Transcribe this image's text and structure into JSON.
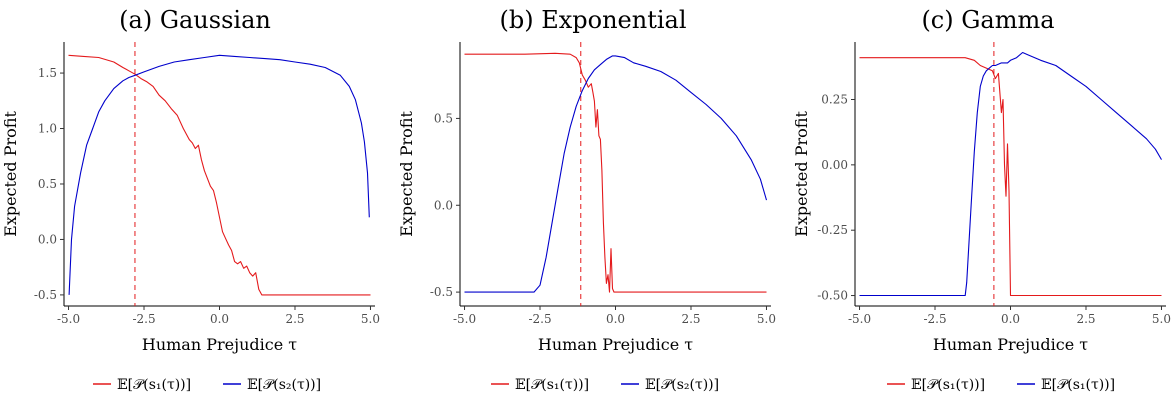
{
  "chart_data": [
    {
      "type": "line",
      "title": "(a) Gaussian",
      "xlabel": "Human Prejudice τ",
      "ylabel": "Expected Profit",
      "xlim": [
        -5.15,
        5.15
      ],
      "ylim": [
        -0.6,
        1.78
      ],
      "xticks": [
        -5.0,
        -2.5,
        0.0,
        2.5,
        5.0
      ],
      "xtick_labels": [
        "-5.0",
        "-2.5",
        "0.0",
        "2.5",
        "5.0"
      ],
      "yticks": [
        -0.5,
        0.0,
        0.5,
        1.0,
        1.5
      ],
      "ytick_labels": [
        "-0.5",
        "0.0",
        "0.5",
        "1.0",
        "1.5"
      ],
      "vline": {
        "x": -2.8,
        "color": "#e41a1c"
      },
      "legend_placement": "bottom",
      "grid": false,
      "series": [
        {
          "name": "𝔼[𝒫(s₁(τ))]",
          "color": "#e41a1c",
          "x": [
            -5.0,
            -4.5,
            -4.0,
            -3.5,
            -3.2,
            -3.0,
            -2.8,
            -2.6,
            -2.4,
            -2.2,
            -2.0,
            -1.8,
            -1.6,
            -1.4,
            -1.2,
            -1.0,
            -0.9,
            -0.8,
            -0.7,
            -0.6,
            -0.5,
            -0.4,
            -0.3,
            -0.2,
            -0.1,
            0.0,
            0.1,
            0.2,
            0.3,
            0.4,
            0.5,
            0.6,
            0.7,
            0.8,
            0.9,
            1.0,
            1.1,
            1.2,
            1.3,
            1.4,
            2.0,
            3.0,
            4.0,
            5.0
          ],
          "y": [
            1.66,
            1.65,
            1.64,
            1.6,
            1.55,
            1.52,
            1.49,
            1.45,
            1.42,
            1.38,
            1.3,
            1.25,
            1.18,
            1.12,
            1.0,
            0.9,
            0.87,
            0.82,
            0.85,
            0.72,
            0.62,
            0.55,
            0.48,
            0.44,
            0.33,
            0.2,
            0.07,
            0.01,
            -0.05,
            -0.1,
            -0.2,
            -0.22,
            -0.2,
            -0.26,
            -0.24,
            -0.3,
            -0.33,
            -0.3,
            -0.45,
            -0.5,
            -0.5,
            -0.5,
            -0.5,
            -0.5
          ]
        },
        {
          "name": "𝔼[𝒫(s₂(τ))]",
          "color": "#0000cc",
          "x": [
            -4.98,
            -4.9,
            -4.8,
            -4.6,
            -4.4,
            -4.2,
            -4.0,
            -3.8,
            -3.5,
            -3.2,
            -3.0,
            -2.8,
            -2.5,
            -2.0,
            -1.5,
            -1.0,
            -0.5,
            0.0,
            0.5,
            1.0,
            1.5,
            2.0,
            2.5,
            3.0,
            3.5,
            4.0,
            4.3,
            4.5,
            4.7,
            4.8,
            4.9,
            4.96
          ],
          "y": [
            -0.5,
            0.0,
            0.3,
            0.6,
            0.85,
            1.0,
            1.15,
            1.25,
            1.36,
            1.43,
            1.46,
            1.48,
            1.51,
            1.56,
            1.6,
            1.62,
            1.64,
            1.66,
            1.65,
            1.64,
            1.63,
            1.62,
            1.6,
            1.58,
            1.55,
            1.48,
            1.38,
            1.26,
            1.05,
            0.88,
            0.6,
            0.2
          ]
        }
      ]
    },
    {
      "type": "line",
      "title": "(b) Exponential",
      "xlabel": "Human Prejudice τ",
      "ylabel": "Expected Profit",
      "xlim": [
        -5.15,
        5.15
      ],
      "ylim": [
        -0.58,
        0.94
      ],
      "xticks": [
        -5.0,
        -2.5,
        0.0,
        2.5,
        5.0
      ],
      "xtick_labels": [
        "-5.0",
        "-2.5",
        "0.0",
        "2.5",
        "5.0"
      ],
      "yticks": [
        -0.5,
        0.0,
        0.5
      ],
      "ytick_labels": [
        "-0.5",
        "0.0",
        "0.5"
      ],
      "vline": {
        "x": -1.15,
        "color": "#e41a1c"
      },
      "legend_placement": "bottom",
      "grid": false,
      "series": [
        {
          "name": "𝔼[𝒫(s₁(τ))]",
          "color": "#e41a1c",
          "x": [
            -5.0,
            -3.0,
            -2.0,
            -1.5,
            -1.3,
            -1.2,
            -1.1,
            -1.0,
            -0.9,
            -0.8,
            -0.75,
            -0.7,
            -0.65,
            -0.6,
            -0.55,
            -0.5,
            -0.45,
            -0.4,
            -0.35,
            -0.3,
            -0.25,
            -0.2,
            -0.15,
            -0.1,
            -0.05,
            0.0,
            5.0
          ],
          "y": [
            0.87,
            0.87,
            0.875,
            0.87,
            0.85,
            0.82,
            0.75,
            0.72,
            0.68,
            0.7,
            0.65,
            0.6,
            0.45,
            0.55,
            0.4,
            0.38,
            0.2,
            -0.1,
            -0.3,
            -0.45,
            -0.4,
            -0.5,
            -0.25,
            -0.48,
            -0.5,
            -0.5,
            -0.5
          ]
        },
        {
          "name": "𝔼[𝒫(s₂(τ))]",
          "color": "#0000cc",
          "x": [
            -5.0,
            -3.0,
            -2.7,
            -2.5,
            -2.3,
            -2.1,
            -1.9,
            -1.7,
            -1.5,
            -1.3,
            -1.1,
            -0.9,
            -0.7,
            -0.5,
            -0.3,
            -0.1,
            0.0,
            0.3,
            0.6,
            1.0,
            1.5,
            2.0,
            2.5,
            3.0,
            3.5,
            4.0,
            4.5,
            4.8,
            5.0
          ],
          "y": [
            -0.5,
            -0.5,
            -0.5,
            -0.46,
            -0.3,
            -0.1,
            0.1,
            0.3,
            0.45,
            0.57,
            0.66,
            0.73,
            0.78,
            0.81,
            0.84,
            0.86,
            0.86,
            0.85,
            0.82,
            0.8,
            0.77,
            0.72,
            0.65,
            0.58,
            0.5,
            0.4,
            0.26,
            0.15,
            0.03
          ]
        }
      ]
    },
    {
      "type": "line",
      "title": "(c) Gamma",
      "xlabel": "Human Prejudice τ",
      "ylabel": "Expected Profit",
      "xlim": [
        -5.15,
        5.15
      ],
      "ylim": [
        -0.54,
        0.47
      ],
      "xticks": [
        -5.0,
        -2.5,
        0.0,
        2.5,
        5.0
      ],
      "xtick_labels": [
        "-5.0",
        "-2.5",
        "0.0",
        "2.5",
        "5.0"
      ],
      "yticks": [
        -0.5,
        -0.25,
        0.0,
        0.25
      ],
      "ytick_labels": [
        "-0.50",
        "-0.25",
        "0.00",
        "0.25"
      ],
      "vline": {
        "x": -0.55,
        "color": "#e41a1c"
      },
      "legend_placement": "bottom",
      "grid": false,
      "series": [
        {
          "name": "𝔼[𝒫(s₁(τ))]",
          "color": "#e41a1c",
          "x": [
            -5.0,
            -2.0,
            -1.5,
            -1.2,
            -1.0,
            -0.8,
            -0.6,
            -0.5,
            -0.4,
            -0.3,
            -0.25,
            -0.2,
            -0.15,
            -0.1,
            -0.05,
            0.0,
            0.05,
            0.1,
            0.15,
            5.0
          ],
          "y": [
            0.41,
            0.41,
            0.41,
            0.4,
            0.38,
            0.37,
            0.36,
            0.33,
            0.35,
            0.2,
            0.25,
            0.0,
            -0.12,
            0.08,
            -0.1,
            -0.5,
            -0.5,
            -0.5,
            -0.5,
            -0.5
          ]
        },
        {
          "name": "𝔼[𝒫(s₁(τ))]",
          "color": "#0000cc",
          "x": [
            -5.0,
            -2.0,
            -1.5,
            -1.45,
            -1.3,
            -1.2,
            -1.1,
            -1.0,
            -0.9,
            -0.8,
            -0.7,
            -0.6,
            -0.5,
            -0.3,
            -0.1,
            0.0,
            0.2,
            0.4,
            0.6,
            1.0,
            1.5,
            2.0,
            2.5,
            3.0,
            3.5,
            4.0,
            4.5,
            4.8,
            5.0
          ],
          "y": [
            -0.5,
            -0.5,
            -0.5,
            -0.45,
            -0.15,
            0.05,
            0.2,
            0.3,
            0.34,
            0.36,
            0.37,
            0.38,
            0.38,
            0.39,
            0.39,
            0.4,
            0.41,
            0.43,
            0.42,
            0.4,
            0.38,
            0.34,
            0.3,
            0.25,
            0.2,
            0.15,
            0.1,
            0.06,
            0.02
          ]
        }
      ]
    }
  ]
}
